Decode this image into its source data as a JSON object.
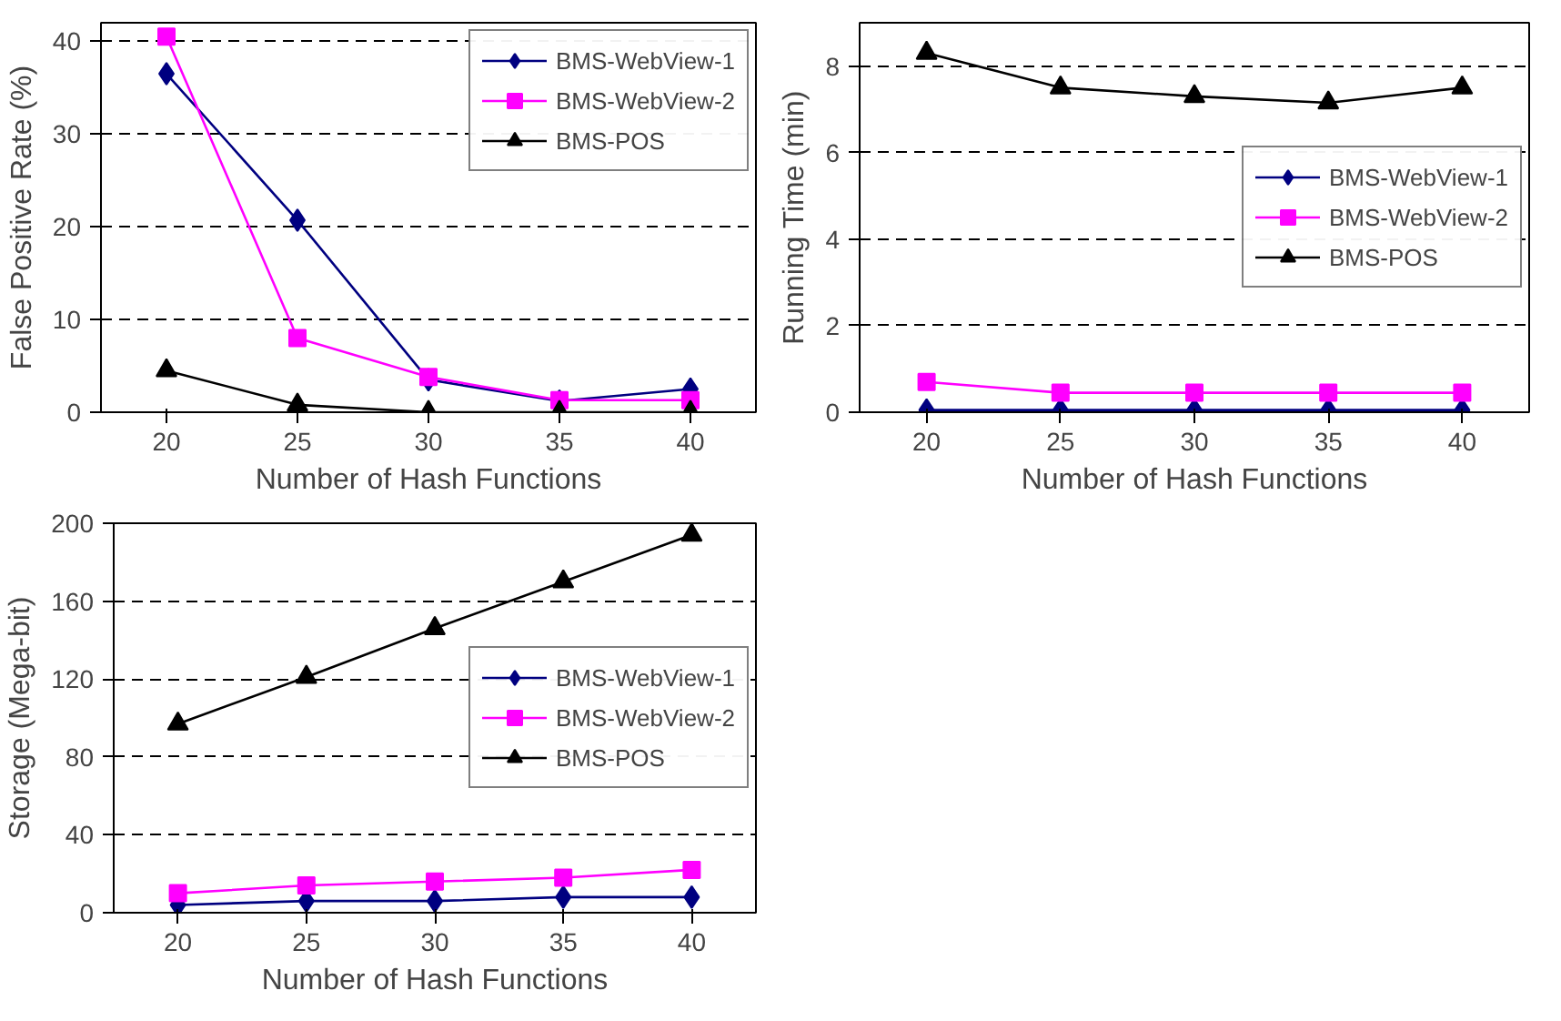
{
  "chart_data": [
    {
      "type": "line",
      "xlabel": "Number of Hash Functions",
      "ylabel": "False Positive Rate (%)",
      "categories": [
        "20",
        "25",
        "30",
        "35",
        "40"
      ],
      "ylim": [
        0,
        42
      ],
      "yticks": [
        0,
        10,
        20,
        30,
        40
      ],
      "grid": "y",
      "legend": "top right",
      "series": [
        {
          "name": "BMS-WebView-1",
          "color": "#000080",
          "marker": "diamond",
          "values": [
            36.5,
            20.7,
            3.5,
            1.2,
            2.5
          ]
        },
        {
          "name": "BMS-WebView-2",
          "color": "#ff00ff",
          "marker": "square",
          "values": [
            40.5,
            8,
            3.8,
            1.3,
            1.3
          ]
        },
        {
          "name": "BMS-POS",
          "color": "#000000",
          "marker": "triangle",
          "values": [
            4.5,
            0.8,
            0,
            0,
            0
          ]
        }
      ]
    },
    {
      "type": "line",
      "xlabel": "Number of Hash Functions",
      "ylabel": "Running Time (min)",
      "categories": [
        "20",
        "25",
        "30",
        "35",
        "40"
      ],
      "ylim": [
        0,
        9
      ],
      "yticks": [
        0,
        2,
        4,
        6,
        8
      ],
      "grid": "y",
      "legend": "right",
      "series": [
        {
          "name": "BMS-WebView-1",
          "color": "#000080",
          "marker": "diamond",
          "values": [
            0.05,
            0.05,
            0.05,
            0.05,
            0.05
          ]
        },
        {
          "name": "BMS-WebView-2",
          "color": "#ff00ff",
          "marker": "square",
          "values": [
            0.7,
            0.45,
            0.45,
            0.45,
            0.45
          ]
        },
        {
          "name": "BMS-POS",
          "color": "#000000",
          "marker": "triangle",
          "values": [
            8.3,
            7.5,
            7.3,
            7.15,
            7.5
          ]
        }
      ]
    },
    {
      "type": "line",
      "xlabel": "Number of Hash Functions",
      "ylabel": "Storage (Mega-bit)",
      "categories": [
        "20",
        "25",
        "30",
        "35",
        "40"
      ],
      "ylim": [
        0,
        200
      ],
      "yticks": [
        0,
        40,
        80,
        120,
        160,
        200
      ],
      "grid": "y",
      "legend": "right",
      "series": [
        {
          "name": "BMS-WebView-1",
          "color": "#000080",
          "marker": "diamond",
          "values": [
            4,
            6,
            6,
            8,
            8
          ]
        },
        {
          "name": "BMS-WebView-2",
          "color": "#ff00ff",
          "marker": "square",
          "values": [
            10,
            14,
            16,
            18,
            22
          ]
        },
        {
          "name": "BMS-POS",
          "color": "#000000",
          "marker": "triangle",
          "values": [
            97,
            121,
            146,
            170,
            194
          ]
        }
      ]
    }
  ]
}
